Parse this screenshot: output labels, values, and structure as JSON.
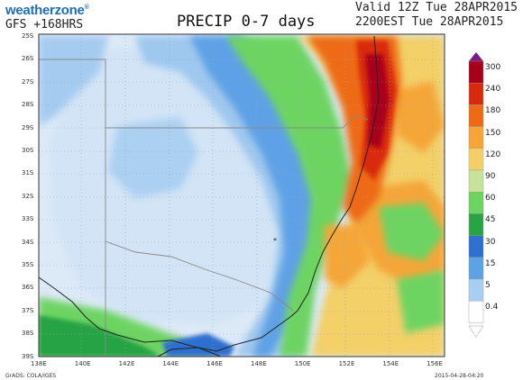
{
  "header": {
    "logo_text": "weatherzone",
    "logo_mark": "®",
    "model": "GFS +168HRS",
    "title": "PRECIP 0-7 days",
    "valid_line1": "Valid 12Z Tue 28APR2015",
    "valid_line2": "2200EST Tue 28APR2015"
  },
  "map": {
    "lat_labels": [
      "25S",
      "26S",
      "27S",
      "28S",
      "29S",
      "30S",
      "31S",
      "32S",
      "33S",
      "34S",
      "35S",
      "36S",
      "37S",
      "38S",
      "39S"
    ],
    "lon_labels": [
      "138E",
      "140E",
      "142E",
      "144E",
      "146E",
      "148E",
      "150E",
      "152E",
      "154E",
      "156E"
    ],
    "colors": {
      "ocean_light": "#d8e9f7",
      "land_light": "#e4eefa"
    }
  },
  "colorbar": {
    "labels": [
      "300",
      "240",
      "180",
      "150",
      "120",
      "90",
      "60",
      "45",
      "30",
      "15",
      "5",
      "0.4"
    ],
    "colors": [
      "#7b1a86",
      "#a8001a",
      "#d9290d",
      "#ee6a14",
      "#f5a637",
      "#f3d067",
      "#c6e39a",
      "#6dd462",
      "#27a344",
      "#2f6fcf",
      "#5ea2e6",
      "#a8cff2",
      "#ffffff"
    ]
  },
  "footer": {
    "left": "GrADS: COLA/IGES",
    "right": "2015-04-28-04:20"
  }
}
